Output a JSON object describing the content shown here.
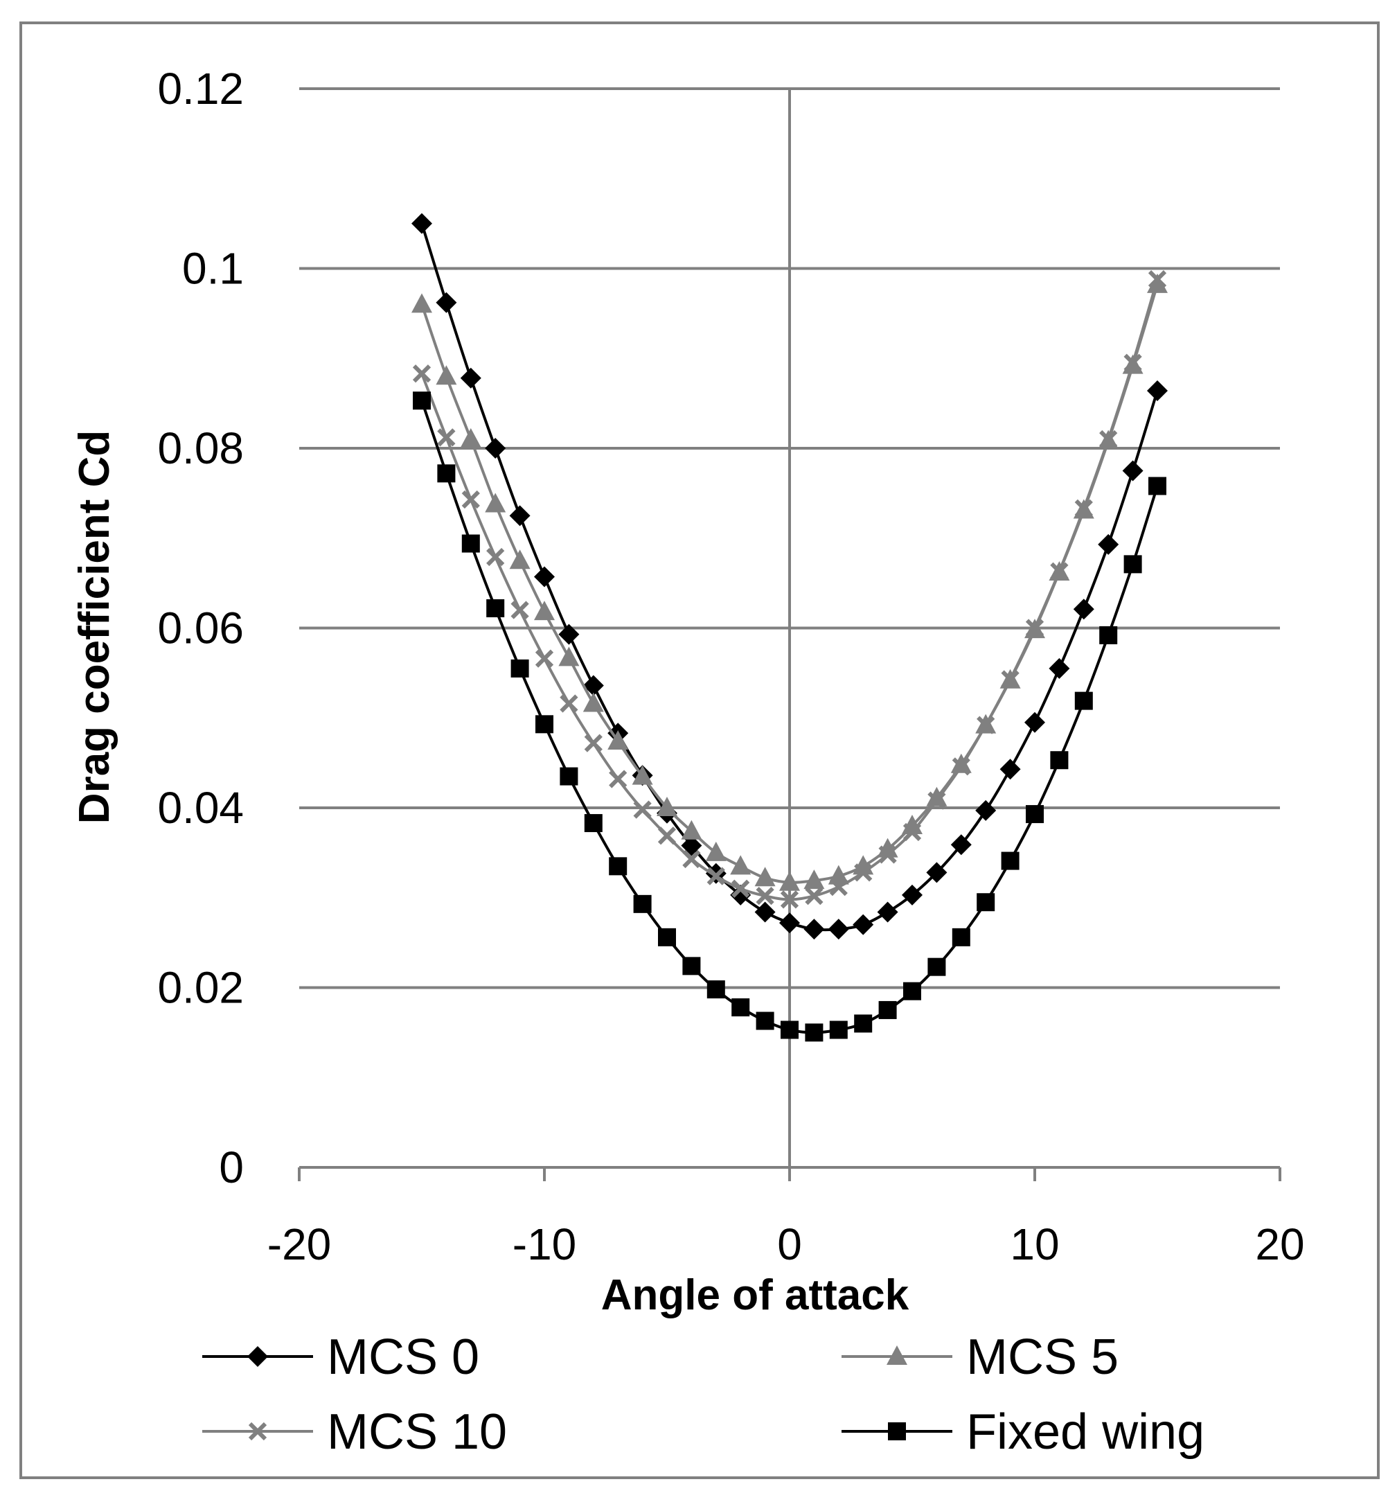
{
  "chart_data": {
    "type": "line",
    "title": "",
    "xlabel": "Angle of attack",
    "ylabel": "Drag coefficient Cd",
    "xlim": [
      -20,
      20
    ],
    "ylim": [
      0,
      0.12
    ],
    "x_ticks": [
      "-20",
      "-10",
      "0",
      "10",
      "20"
    ],
    "x_tick_values": [
      -20,
      -10,
      0,
      10,
      20
    ],
    "y_ticks": [
      "0",
      "0.02",
      "0.04",
      "0.06",
      "0.08",
      "0.1",
      "0.12"
    ],
    "y_tick_values": [
      0,
      0.02,
      0.04,
      0.06,
      0.08,
      0.1,
      0.12
    ],
    "grid": "horizontal major gridlines",
    "legend_position": "bottom",
    "x": [
      -15,
      -14,
      -13,
      -12,
      -11,
      -10,
      -9,
      -8,
      -7,
      -6,
      -5,
      -4,
      -3,
      -2,
      -1,
      0,
      1,
      2,
      3,
      4,
      5,
      6,
      7,
      8,
      9,
      10,
      11,
      12,
      13,
      14,
      15
    ],
    "series": [
      {
        "name": "MCS 0",
        "color": "#000000",
        "marker": "diamond",
        "values": [
          0.105,
          0.0962,
          0.0878,
          0.08,
          0.0725,
          0.0657,
          0.0593,
          0.0536,
          0.0483,
          0.0436,
          0.0394,
          0.0358,
          0.0327,
          0.0303,
          0.0284,
          0.0272,
          0.0265,
          0.0265,
          0.027,
          0.0284,
          0.0303,
          0.0328,
          0.0359,
          0.0397,
          0.0443,
          0.0495,
          0.0555,
          0.0621,
          0.0693,
          0.0775,
          0.0864
        ]
      },
      {
        "name": "MCS 5",
        "color": "#808080",
        "marker": "triangle",
        "values": [
          0.096,
          0.088,
          0.081,
          0.0738,
          0.0675,
          0.0618,
          0.0567,
          0.0516,
          0.0474,
          0.0435,
          0.04,
          0.0374,
          0.035,
          0.0335,
          0.0322,
          0.0317,
          0.0319,
          0.0324,
          0.0335,
          0.0354,
          0.038,
          0.0411,
          0.0448,
          0.0492,
          0.0542,
          0.0598,
          0.0662,
          0.0731,
          0.0808,
          0.0892,
          0.0982
        ]
      },
      {
        "name": "MCS 10",
        "color": "#808080",
        "marker": "x",
        "values": [
          0.0883,
          0.0812,
          0.0743,
          0.0679,
          0.062,
          0.0566,
          0.0516,
          0.0472,
          0.0432,
          0.0398,
          0.0369,
          0.0343,
          0.0324,
          0.031,
          0.0302,
          0.0298,
          0.0302,
          0.0312,
          0.0328,
          0.0348,
          0.0373,
          0.0408,
          0.0446,
          0.0492,
          0.0543,
          0.06,
          0.0663,
          0.0733,
          0.081,
          0.0895,
          0.0988
        ]
      },
      {
        "name": "Fixed wing",
        "color": "#000000",
        "marker": "square",
        "values": [
          0.0853,
          0.0772,
          0.0694,
          0.0622,
          0.0555,
          0.0493,
          0.0435,
          0.0383,
          0.0335,
          0.0293,
          0.0256,
          0.0224,
          0.0198,
          0.0178,
          0.0163,
          0.0153,
          0.015,
          0.0153,
          0.016,
          0.0175,
          0.0196,
          0.0223,
          0.0256,
          0.0295,
          0.0341,
          0.0393,
          0.0453,
          0.0519,
          0.0592,
          0.0671,
          0.0758
        ]
      }
    ]
  }
}
